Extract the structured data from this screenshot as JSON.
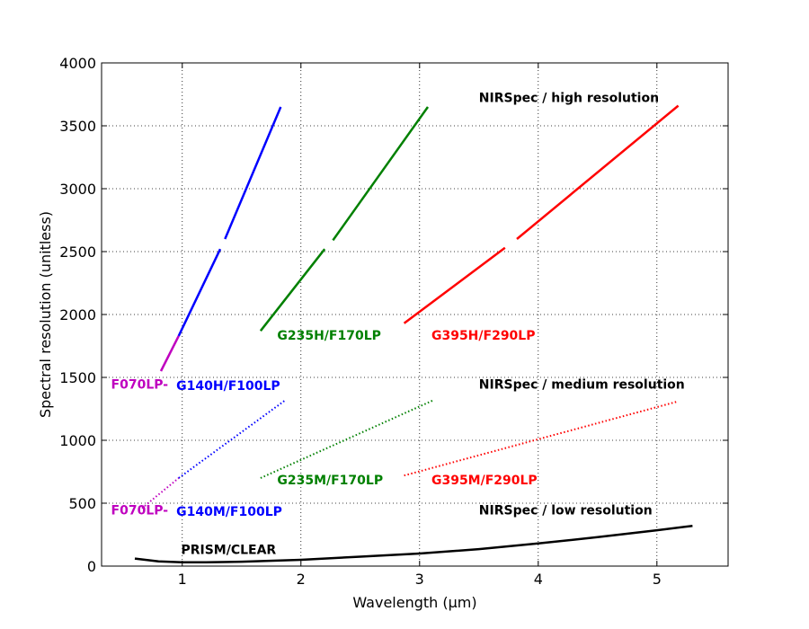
{
  "chart_data": {
    "type": "line",
    "title": "",
    "xlabel": "Wavelength (μm)",
    "ylabel": "Spectral resolution (unitless)",
    "xlim": [
      0.32,
      5.6
    ],
    "ylim": [
      0,
      4000
    ],
    "xticks": [
      1,
      2,
      3,
      4,
      5
    ],
    "yticks": [
      0,
      500,
      1000,
      1500,
      2000,
      2500,
      3000,
      3500,
      4000
    ],
    "grid": true,
    "grid_style": "dotted",
    "series": [
      {
        "name": "F070LP-",
        "group": "high",
        "color": "#bf00bf",
        "style": "solid",
        "x": [
          0.82,
          0.97
        ],
        "y": [
          1550,
          1830
        ]
      },
      {
        "name": "G140H/F100LP",
        "group": "high",
        "color": "#0000ff",
        "style": "solid",
        "x": [
          0.97,
          1.32
        ],
        "y": [
          1830,
          2520
        ]
      },
      {
        "name": "G140H/F100LP",
        "group": "high",
        "color": "#0000ff",
        "style": "solid",
        "x": [
          1.36,
          1.83
        ],
        "y": [
          2600,
          3650
        ]
      },
      {
        "name": "G235H/F170LP",
        "group": "high",
        "color": "#008000",
        "style": "solid",
        "x": [
          1.66,
          2.2
        ],
        "y": [
          1870,
          2520
        ]
      },
      {
        "name": "G235H/F170LP",
        "group": "high",
        "color": "#008000",
        "style": "solid",
        "x": [
          2.27,
          3.07
        ],
        "y": [
          2590,
          3650
        ]
      },
      {
        "name": "G395H/F290LP",
        "group": "high",
        "color": "#ff0000",
        "style": "solid",
        "x": [
          2.87,
          3.72
        ],
        "y": [
          1930,
          2530
        ]
      },
      {
        "name": "G395H/F290LP",
        "group": "high",
        "color": "#ff0000",
        "style": "solid",
        "x": [
          3.82,
          5.18
        ],
        "y": [
          2600,
          3660
        ]
      },
      {
        "name": "F070LP-",
        "group": "medium",
        "color": "#bf00bf",
        "style": "dotted",
        "x": [
          0.66,
          0.97
        ],
        "y": [
          460,
          700
        ]
      },
      {
        "name": "G140M/F100LP",
        "group": "medium",
        "color": "#0000ff",
        "style": "dotted",
        "x": [
          0.97,
          1.87
        ],
        "y": [
          700,
          1320
        ]
      },
      {
        "name": "G235M/F170LP",
        "group": "medium",
        "color": "#008000",
        "style": "dotted",
        "x": [
          1.66,
          3.12
        ],
        "y": [
          700,
          1320
        ]
      },
      {
        "name": "G395M/F290LP",
        "group": "medium",
        "color": "#ff0000",
        "style": "dotted",
        "x": [
          2.87,
          5.18
        ],
        "y": [
          720,
          1310
        ]
      },
      {
        "name": "PRISM/CLEAR",
        "group": "low",
        "color": "#000000",
        "style": "solid",
        "x": [
          0.6,
          0.8,
          1.0,
          1.2,
          1.5,
          2.0,
          2.5,
          3.0,
          3.5,
          4.0,
          4.5,
          5.0,
          5.3
        ],
        "y": [
          60,
          38,
          30,
          30,
          35,
          50,
          75,
          100,
          135,
          180,
          230,
          285,
          320
        ]
      }
    ],
    "annotations": [
      {
        "text": "NIRSpec / high resolution",
        "x": 3.5,
        "y": 3690,
        "color": "#000000"
      },
      {
        "text": "NIRSpec / medium resolution",
        "x": 3.5,
        "y": 1410,
        "color": "#000000"
      },
      {
        "text": "NIRSpec / low resolution",
        "x": 3.5,
        "y": 410,
        "color": "#000000"
      },
      {
        "text": "G235H/F170LP",
        "x": 1.8,
        "y": 1800,
        "color": "#008000"
      },
      {
        "text": "G395H/F290LP",
        "x": 3.1,
        "y": 1800,
        "color": "#ff0000"
      },
      {
        "text": "F070LP-",
        "x": 0.4,
        "y": 1410,
        "color": "#bf00bf"
      },
      {
        "text": "G140H/F100LP",
        "x": 0.95,
        "y": 1400,
        "color": "#0000ff"
      },
      {
        "text": "G235M/F170LP",
        "x": 1.8,
        "y": 650,
        "color": "#008000"
      },
      {
        "text": "G395M/F290LP",
        "x": 3.1,
        "y": 650,
        "color": "#ff0000"
      },
      {
        "text": "F070LP-",
        "x": 0.4,
        "y": 410,
        "color": "#bf00bf"
      },
      {
        "text": "G140M/F100LP",
        "x": 0.95,
        "y": 400,
        "color": "#0000ff"
      },
      {
        "text": "PRISM/CLEAR",
        "x": 0.99,
        "y": 95,
        "color": "#000000"
      }
    ]
  }
}
